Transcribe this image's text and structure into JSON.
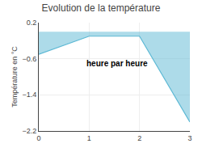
{
  "chart_data": {
    "type": "area",
    "title": "Evolution de la température",
    "ylabel": "Température en °C",
    "annotations": [
      "heure par heure"
    ],
    "x": [
      0,
      1,
      2,
      3
    ],
    "series": [
      {
        "values": [
          -0.5,
          -0.1,
          -0.1,
          -2.0
        ],
        "color": "#5bb8d4"
      }
    ],
    "xlim": [
      0,
      3
    ],
    "xticks": [
      0,
      1,
      2,
      3
    ],
    "ylim": [
      -2.2,
      0.2
    ],
    "yticks": [
      0.2,
      -0.6,
      -1.4,
      -2.2
    ],
    "grid": true
  }
}
